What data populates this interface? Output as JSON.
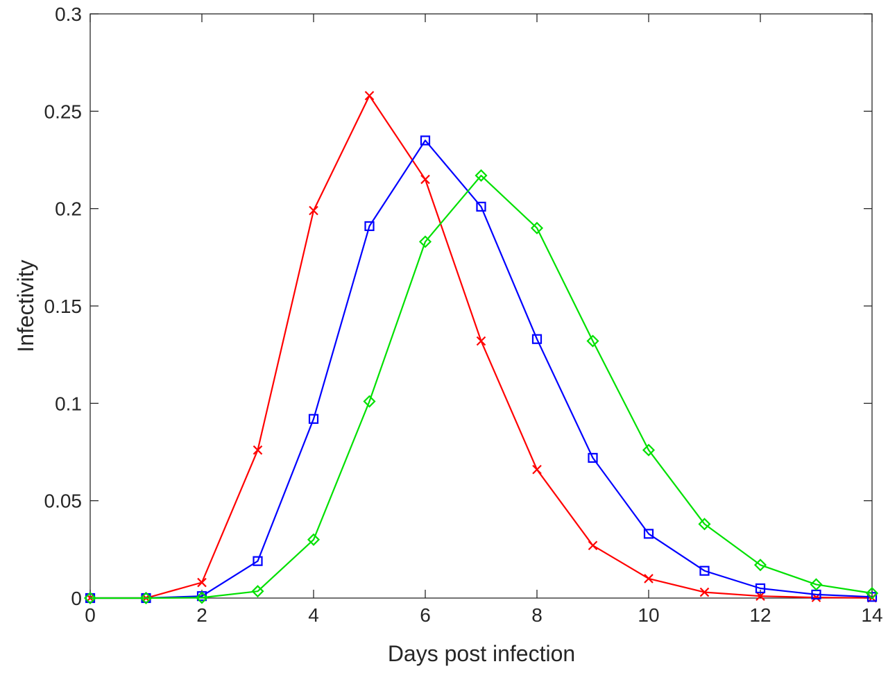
{
  "chart_data": {
    "type": "line",
    "title": "",
    "xlabel": "Days post infection",
    "ylabel": "Infectivity",
    "xlim": [
      0,
      14
    ],
    "ylim": [
      0,
      0.3
    ],
    "xticks": [
      0,
      2,
      4,
      6,
      8,
      10,
      12,
      14
    ],
    "yticks": [
      0,
      0.05,
      0.1,
      0.15,
      0.2,
      0.25,
      0.3
    ],
    "xtick_labels": [
      "0",
      "2",
      "4",
      "6",
      "8",
      "10",
      "12",
      "14"
    ],
    "ytick_labels": [
      "0",
      "0.05",
      "0.1",
      "0.15",
      "0.2",
      "0.25",
      "0.3"
    ],
    "grid": false,
    "legend": "none",
    "x": [
      0,
      1,
      2,
      3,
      4,
      5,
      6,
      7,
      8,
      9,
      10,
      11,
      12,
      13,
      14
    ],
    "series": [
      {
        "color": "#ff0000",
        "marker": "x",
        "values": [
          0,
          0,
          0.008,
          0.076,
          0.199,
          0.258,
          0.215,
          0.132,
          0.066,
          0.027,
          0.01,
          0.003,
          0.001,
          0.0003,
          0.0001
        ]
      },
      {
        "color": "#0000ff",
        "marker": "square",
        "values": [
          0,
          0,
          0.001,
          0.019,
          0.092,
          0.191,
          0.235,
          0.201,
          0.133,
          0.072,
          0.033,
          0.014,
          0.005,
          0.0018,
          0.0006
        ]
      },
      {
        "color": "#00e000",
        "marker": "diamond",
        "values": [
          0,
          0,
          0.0002,
          0.0035,
          0.03,
          0.101,
          0.183,
          0.217,
          0.19,
          0.132,
          0.076,
          0.038,
          0.017,
          0.007,
          0.0025
        ]
      }
    ]
  }
}
